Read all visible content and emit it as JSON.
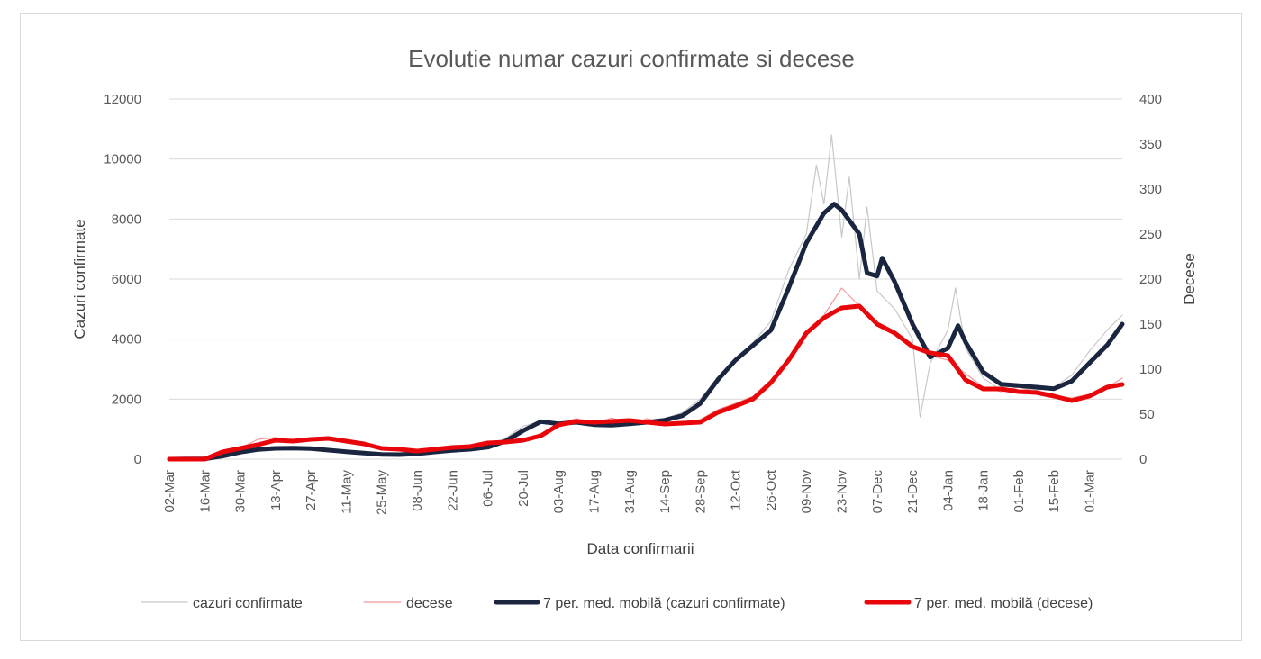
{
  "chart_data": {
    "type": "line",
    "title": "Evolutie numar cazuri confirmate si decese",
    "xlabel": "Data confirmarii",
    "ylabel": "Cazuri confirmate",
    "y2label": "Decese",
    "ylim": [
      0,
      12000
    ],
    "y2lim": [
      0,
      400
    ],
    "yticks": [
      "0",
      "2000",
      "4000",
      "6000",
      "8000",
      "10000",
      "12000"
    ],
    "y2ticks": [
      "0",
      "50",
      "100",
      "150",
      "200",
      "250",
      "300",
      "350",
      "400"
    ],
    "grid": true,
    "legend_position": "bottom",
    "x_start": "2020-03-02",
    "x_end": "2021-03-14",
    "x_ticks": [
      "02-Mar",
      "16-Mar",
      "30-Mar",
      "13-Apr",
      "27-Apr",
      "11-May",
      "25-May",
      "08-Jun",
      "22-Jun",
      "06-Jul",
      "20-Jul",
      "03-Aug",
      "17-Aug",
      "31-Aug",
      "14-Sep",
      "28-Sep",
      "12-Oct",
      "26-Oct",
      "09-Nov",
      "23-Nov",
      "07-Dec",
      "21-Dec",
      "04-Jan",
      "18-Jan",
      "01-Feb",
      "15-Feb",
      "01-Mar"
    ],
    "series": [
      {
        "name": "cazuri confirmate",
        "axis": "left",
        "style": "thin",
        "color": "#c8c8c8",
        "points": [
          [
            "2020-03-02",
            0
          ],
          [
            "2020-03-16",
            40
          ],
          [
            "2020-03-23",
            200
          ],
          [
            "2020-03-30",
            300
          ],
          [
            "2020-04-06",
            380
          ],
          [
            "2020-04-13",
            420
          ],
          [
            "2020-04-20",
            380
          ],
          [
            "2020-04-27",
            360
          ],
          [
            "2020-05-04",
            300
          ],
          [
            "2020-05-11",
            250
          ],
          [
            "2020-05-18",
            200
          ],
          [
            "2020-05-25",
            180
          ],
          [
            "2020-06-01",
            150
          ],
          [
            "2020-06-08",
            200
          ],
          [
            "2020-06-15",
            260
          ],
          [
            "2020-06-22",
            300
          ],
          [
            "2020-06-29",
            350
          ],
          [
            "2020-07-06",
            450
          ],
          [
            "2020-07-13",
            700
          ],
          [
            "2020-07-20",
            1100
          ],
          [
            "2020-07-27",
            1250
          ],
          [
            "2020-08-03",
            1200
          ],
          [
            "2020-08-10",
            1300
          ],
          [
            "2020-08-17",
            1250
          ],
          [
            "2020-08-24",
            1150
          ],
          [
            "2020-08-31",
            1200
          ],
          [
            "2020-09-07",
            1250
          ],
          [
            "2020-09-14",
            1350
          ],
          [
            "2020-09-21",
            1550
          ],
          [
            "2020-09-28",
            2000
          ],
          [
            "2020-10-05",
            2700
          ],
          [
            "2020-10-12",
            3300
          ],
          [
            "2020-10-19",
            3900
          ],
          [
            "2020-10-26",
            4600
          ],
          [
            "2020-11-02",
            6300
          ],
          [
            "2020-11-09",
            7500
          ],
          [
            "2020-11-13",
            9800
          ],
          [
            "2020-11-16",
            8500
          ],
          [
            "2020-11-19",
            10800
          ],
          [
            "2020-11-23",
            7400
          ],
          [
            "2020-11-26",
            9400
          ],
          [
            "2020-11-30",
            6000
          ],
          [
            "2020-12-03",
            8400
          ],
          [
            "2020-12-07",
            5600
          ],
          [
            "2020-12-14",
            5000
          ],
          [
            "2020-12-21",
            4000
          ],
          [
            "2020-12-24",
            1400
          ],
          [
            "2020-12-28",
            3200
          ],
          [
            "2021-01-04",
            4300
          ],
          [
            "2021-01-07",
            5700
          ],
          [
            "2021-01-11",
            3700
          ],
          [
            "2021-01-18",
            2700
          ],
          [
            "2021-01-25",
            2300
          ],
          [
            "2021-02-01",
            2400
          ],
          [
            "2021-02-08",
            2300
          ],
          [
            "2021-02-15",
            2400
          ],
          [
            "2021-02-22",
            2800
          ],
          [
            "2021-03-01",
            3600
          ],
          [
            "2021-03-08",
            4300
          ],
          [
            "2021-03-14",
            4800
          ]
        ]
      },
      {
        "name": "decese",
        "axis": "right",
        "style": "thin",
        "color": "#f29a9a",
        "points": [
          [
            "2020-03-02",
            0
          ],
          [
            "2020-03-16",
            2
          ],
          [
            "2020-03-30",
            12
          ],
          [
            "2020-04-06",
            22
          ],
          [
            "2020-04-13",
            24
          ],
          [
            "2020-04-20",
            20
          ],
          [
            "2020-04-27",
            24
          ],
          [
            "2020-05-04",
            22
          ],
          [
            "2020-05-11",
            20
          ],
          [
            "2020-05-18",
            15
          ],
          [
            "2020-05-25",
            12
          ],
          [
            "2020-06-01",
            10
          ],
          [
            "2020-06-08",
            8
          ],
          [
            "2020-06-15",
            12
          ],
          [
            "2020-06-22",
            14
          ],
          [
            "2020-06-29",
            14
          ],
          [
            "2020-07-06",
            20
          ],
          [
            "2020-07-13",
            18
          ],
          [
            "2020-07-20",
            22
          ],
          [
            "2020-07-27",
            26
          ],
          [
            "2020-08-03",
            40
          ],
          [
            "2020-08-10",
            45
          ],
          [
            "2020-08-17",
            38
          ],
          [
            "2020-08-24",
            46
          ],
          [
            "2020-08-31",
            38
          ],
          [
            "2020-09-07",
            45
          ],
          [
            "2020-09-14",
            40
          ],
          [
            "2020-09-21",
            38
          ],
          [
            "2020-09-28",
            44
          ],
          [
            "2020-10-05",
            55
          ],
          [
            "2020-10-12",
            62
          ],
          [
            "2020-10-19",
            70
          ],
          [
            "2020-10-26",
            88
          ],
          [
            "2020-11-02",
            110
          ],
          [
            "2020-11-09",
            140
          ],
          [
            "2020-11-16",
            160
          ],
          [
            "2020-11-23",
            190
          ],
          [
            "2020-11-30",
            170
          ],
          [
            "2020-12-07",
            150
          ],
          [
            "2020-12-14",
            140
          ],
          [
            "2020-12-21",
            125
          ],
          [
            "2020-12-28",
            115
          ],
          [
            "2021-01-04",
            110
          ],
          [
            "2021-01-11",
            95
          ],
          [
            "2021-01-18",
            80
          ],
          [
            "2021-01-25",
            75
          ],
          [
            "2021-02-01",
            80
          ],
          [
            "2021-02-08",
            75
          ],
          [
            "2021-02-15",
            70
          ],
          [
            "2021-02-22",
            68
          ],
          [
            "2021-03-01",
            72
          ],
          [
            "2021-03-08",
            80
          ],
          [
            "2021-03-14",
            90
          ]
        ]
      },
      {
        "name": "7 per. med. mobilă (cazuri confirmate)",
        "axis": "left",
        "style": "thick",
        "color": "#1a2540",
        "points": [
          [
            "2020-03-02",
            0
          ],
          [
            "2020-03-09",
            5
          ],
          [
            "2020-03-16",
            10
          ],
          [
            "2020-03-23",
            100
          ],
          [
            "2020-03-30",
            230
          ],
          [
            "2020-04-06",
            320
          ],
          [
            "2020-04-13",
            360
          ],
          [
            "2020-04-20",
            370
          ],
          [
            "2020-04-27",
            350
          ],
          [
            "2020-05-04",
            300
          ],
          [
            "2020-05-11",
            250
          ],
          [
            "2020-05-18",
            200
          ],
          [
            "2020-05-25",
            160
          ],
          [
            "2020-06-01",
            150
          ],
          [
            "2020-06-08",
            180
          ],
          [
            "2020-06-15",
            240
          ],
          [
            "2020-06-22",
            290
          ],
          [
            "2020-06-29",
            330
          ],
          [
            "2020-07-06",
            400
          ],
          [
            "2020-07-13",
            600
          ],
          [
            "2020-07-20",
            950
          ],
          [
            "2020-07-27",
            1250
          ],
          [
            "2020-08-03",
            1180
          ],
          [
            "2020-08-10",
            1230
          ],
          [
            "2020-08-17",
            1150
          ],
          [
            "2020-08-24",
            1130
          ],
          [
            "2020-08-31",
            1180
          ],
          [
            "2020-09-07",
            1230
          ],
          [
            "2020-09-14",
            1300
          ],
          [
            "2020-09-21",
            1450
          ],
          [
            "2020-09-28",
            1850
          ],
          [
            "2020-10-05",
            2650
          ],
          [
            "2020-10-12",
            3300
          ],
          [
            "2020-10-19",
            3800
          ],
          [
            "2020-10-26",
            4300
          ],
          [
            "2020-11-02",
            5700
          ],
          [
            "2020-11-09",
            7200
          ],
          [
            "2020-11-16",
            8200
          ],
          [
            "2020-11-20",
            8500
          ],
          [
            "2020-11-23",
            8300
          ],
          [
            "2020-11-30",
            7500
          ],
          [
            "2020-12-03",
            6200
          ],
          [
            "2020-12-07",
            6100
          ],
          [
            "2020-12-09",
            6700
          ],
          [
            "2020-12-14",
            5900
          ],
          [
            "2020-12-21",
            4500
          ],
          [
            "2020-12-28",
            3400
          ],
          [
            "2021-01-04",
            3700
          ],
          [
            "2021-01-08",
            4450
          ],
          [
            "2021-01-11",
            3900
          ],
          [
            "2021-01-18",
            2900
          ],
          [
            "2021-01-25",
            2500
          ],
          [
            "2021-02-01",
            2450
          ],
          [
            "2021-02-08",
            2400
          ],
          [
            "2021-02-15",
            2350
          ],
          [
            "2021-02-22",
            2600
          ],
          [
            "2021-03-01",
            3200
          ],
          [
            "2021-03-08",
            3800
          ],
          [
            "2021-03-14",
            4500
          ]
        ]
      },
      {
        "name": "7 per. med. mobilă (decese)",
        "axis": "right",
        "style": "thick",
        "color": "#e8060a",
        "points": [
          [
            "2020-03-02",
            0
          ],
          [
            "2020-03-16",
            0
          ],
          [
            "2020-03-23",
            8
          ],
          [
            "2020-03-30",
            12
          ],
          [
            "2020-04-06",
            16
          ],
          [
            "2020-04-13",
            21
          ],
          [
            "2020-04-20",
            20
          ],
          [
            "2020-04-27",
            22
          ],
          [
            "2020-05-04",
            23
          ],
          [
            "2020-05-11",
            20
          ],
          [
            "2020-05-18",
            17
          ],
          [
            "2020-05-25",
            12
          ],
          [
            "2020-06-01",
            11
          ],
          [
            "2020-06-08",
            9
          ],
          [
            "2020-06-15",
            11
          ],
          [
            "2020-06-22",
            13
          ],
          [
            "2020-06-29",
            14
          ],
          [
            "2020-07-06",
            18
          ],
          [
            "2020-07-13",
            19
          ],
          [
            "2020-07-20",
            21
          ],
          [
            "2020-07-27",
            26
          ],
          [
            "2020-08-03",
            38
          ],
          [
            "2020-08-10",
            42
          ],
          [
            "2020-08-17",
            41
          ],
          [
            "2020-08-24",
            42
          ],
          [
            "2020-08-31",
            43
          ],
          [
            "2020-09-07",
            41
          ],
          [
            "2020-09-14",
            39
          ],
          [
            "2020-09-21",
            40
          ],
          [
            "2020-09-28",
            41
          ],
          [
            "2020-10-05",
            52
          ],
          [
            "2020-10-12",
            59
          ],
          [
            "2020-10-19",
            67
          ],
          [
            "2020-10-26",
            85
          ],
          [
            "2020-11-02",
            110
          ],
          [
            "2020-11-09",
            140
          ],
          [
            "2020-11-16",
            157
          ],
          [
            "2020-11-23",
            168
          ],
          [
            "2020-11-30",
            170
          ],
          [
            "2020-12-07",
            150
          ],
          [
            "2020-12-14",
            140
          ],
          [
            "2020-12-21",
            125
          ],
          [
            "2020-12-28",
            118
          ],
          [
            "2021-01-04",
            115
          ],
          [
            "2021-01-11",
            88
          ],
          [
            "2021-01-18",
            78
          ],
          [
            "2021-01-25",
            78
          ],
          [
            "2021-02-01",
            75
          ],
          [
            "2021-02-08",
            74
          ],
          [
            "2021-02-15",
            70
          ],
          [
            "2021-02-22",
            65
          ],
          [
            "2021-03-01",
            70
          ],
          [
            "2021-03-08",
            80
          ],
          [
            "2021-03-14",
            83
          ]
        ]
      }
    ]
  }
}
